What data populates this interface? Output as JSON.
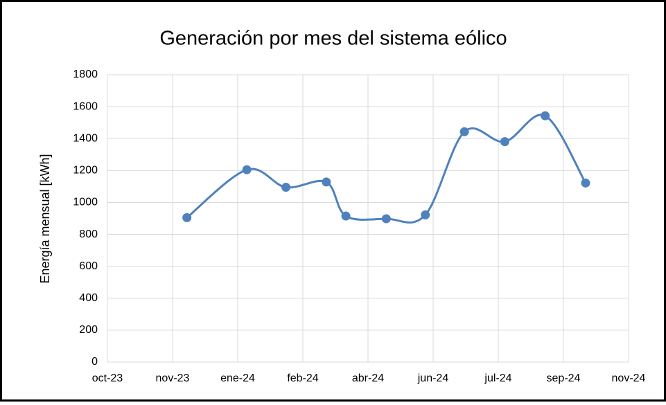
{
  "chart_data": {
    "type": "line",
    "title": "Generación por mes del sistema eólico",
    "y_label": "Energía mensual [kWh]",
    "x": [
      45261,
      45307,
      45337,
      45368,
      45383,
      45414,
      45444,
      45474,
      45505,
      45536,
      45567
    ],
    "series": [
      {
        "name": "Energía mensual",
        "color": "#4f81bd",
        "values": [
          905,
          1205,
          1095,
          1128,
          915,
          898,
          922,
          1443,
          1381,
          1543,
          1122
        ]
      }
    ],
    "xlim": [
      45200,
      45600
    ],
    "xticks": [
      {
        "value": 45200,
        "label": "oct-23"
      },
      {
        "value": 45250,
        "label": "nov-23"
      },
      {
        "value": 45300,
        "label": "ene-24"
      },
      {
        "value": 45350,
        "label": "feb-24"
      },
      {
        "value": 45400,
        "label": "abr-24"
      },
      {
        "value": 45450,
        "label": "jun-24"
      },
      {
        "value": 45500,
        "label": "jul-24"
      },
      {
        "value": 45550,
        "label": "sep-24"
      },
      {
        "value": 45600,
        "label": "nov-24"
      }
    ],
    "ylim": [
      0,
      1800
    ],
    "yticks": [
      0,
      200,
      400,
      600,
      800,
      1000,
      1200,
      1400,
      1600,
      1800
    ],
    "grid": true,
    "smooth": true
  }
}
